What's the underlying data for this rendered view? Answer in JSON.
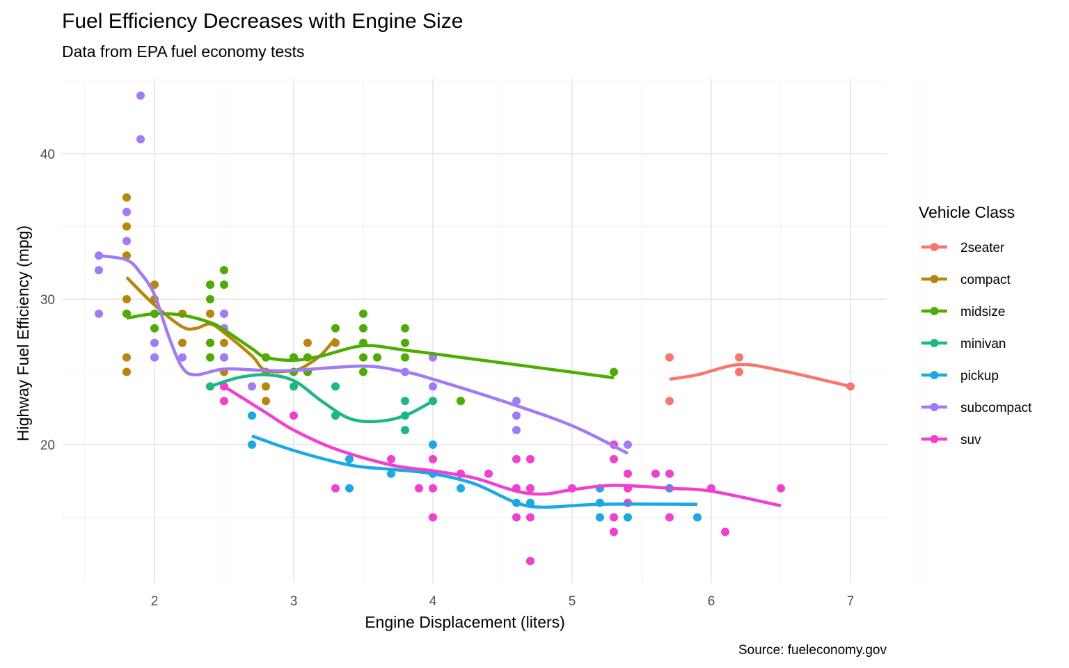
{
  "chart_data": {
    "type": "scatter",
    "title": "Fuel Efficiency Decreases with Engine Size",
    "subtitle": "Data from EPA fuel economy tests",
    "xlabel": "Engine Displacement (liters)",
    "ylabel": "Highway Fuel Efficiency (mpg)",
    "caption": "Source: fueleconomy.gov",
    "xlim": [
      1.6,
      7.0
    ],
    "ylim": [
      12,
      44
    ],
    "x_ticks": [
      2,
      3,
      4,
      5,
      6,
      7
    ],
    "y_ticks": [
      20,
      30,
      40
    ],
    "grid": true,
    "legend": {
      "title": "Vehicle Class",
      "position": "right"
    },
    "series": [
      {
        "name": "2seater",
        "color": "#F8766D",
        "points": [
          [
            5.7,
            26
          ],
          [
            5.7,
            23
          ],
          [
            6.2,
            26
          ],
          [
            6.2,
            25
          ],
          [
            7.0,
            24
          ]
        ],
        "smooth": [
          [
            5.7,
            24.5
          ],
          [
            5.9,
            24.8
          ],
          [
            6.2,
            25.5
          ],
          [
            6.5,
            25.1
          ],
          [
            7.0,
            24.0
          ]
        ]
      },
      {
        "name": "compact",
        "color": "#B8860B",
        "points": [
          [
            1.8,
            37
          ],
          [
            1.8,
            35
          ],
          [
            1.8,
            33
          ],
          [
            1.8,
            30
          ],
          [
            1.8,
            29
          ],
          [
            1.8,
            26
          ],
          [
            1.8,
            25
          ],
          [
            2.0,
            31
          ],
          [
            2.0,
            30
          ],
          [
            2.0,
            29
          ],
          [
            2.0,
            26
          ],
          [
            2.2,
            29
          ],
          [
            2.2,
            27
          ],
          [
            2.4,
            31
          ],
          [
            2.4,
            29
          ],
          [
            2.4,
            27
          ],
          [
            2.5,
            29
          ],
          [
            2.5,
            27
          ],
          [
            2.5,
            25
          ],
          [
            2.8,
            26
          ],
          [
            2.8,
            25
          ],
          [
            2.8,
            24
          ],
          [
            2.8,
            23
          ],
          [
            3.0,
            26
          ],
          [
            3.1,
            27
          ],
          [
            3.3,
            27
          ]
        ],
        "smooth": [
          [
            1.8,
            31.5
          ],
          [
            2.0,
            29.6
          ],
          [
            2.2,
            28.1
          ],
          [
            2.3,
            28.0
          ],
          [
            2.4,
            28.3
          ],
          [
            2.5,
            27.7
          ],
          [
            2.7,
            26.1
          ],
          [
            2.8,
            25.1
          ],
          [
            3.0,
            25.1
          ],
          [
            3.1,
            25.5
          ],
          [
            3.2,
            26.2
          ],
          [
            3.3,
            27.3
          ]
        ]
      },
      {
        "name": "midsize",
        "color": "#4DAC00",
        "points": [
          [
            1.8,
            29
          ],
          [
            2.0,
            29
          ],
          [
            2.0,
            28
          ],
          [
            2.4,
            31
          ],
          [
            2.4,
            30
          ],
          [
            2.4,
            27
          ],
          [
            2.4,
            26
          ],
          [
            2.5,
            32
          ],
          [
            2.5,
            31
          ],
          [
            2.5,
            26
          ],
          [
            2.8,
            26
          ],
          [
            3.0,
            26
          ],
          [
            3.0,
            25
          ],
          [
            3.1,
            26
          ],
          [
            3.1,
            25
          ],
          [
            3.3,
            28
          ],
          [
            3.5,
            29
          ],
          [
            3.5,
            28
          ],
          [
            3.5,
            27
          ],
          [
            3.5,
            26
          ],
          [
            3.5,
            25
          ],
          [
            3.6,
            26
          ],
          [
            3.8,
            28
          ],
          [
            3.8,
            27
          ],
          [
            3.8,
            26
          ],
          [
            4.2,
            23
          ],
          [
            5.3,
            25
          ]
        ],
        "smooth": [
          [
            1.8,
            28.7
          ],
          [
            2.0,
            29.0
          ],
          [
            2.2,
            28.9
          ],
          [
            2.4,
            28.4
          ],
          [
            2.5,
            27.9
          ],
          [
            2.7,
            26.6
          ],
          [
            2.8,
            26.0
          ],
          [
            3.0,
            25.8
          ],
          [
            3.2,
            26.1
          ],
          [
            3.5,
            26.8
          ],
          [
            3.8,
            26.5
          ],
          [
            4.2,
            26.0
          ],
          [
            5.3,
            24.6
          ]
        ]
      },
      {
        "name": "minivan",
        "color": "#1BB886",
        "points": [
          [
            2.4,
            24
          ],
          [
            3.0,
            24
          ],
          [
            3.3,
            24
          ],
          [
            3.3,
            22
          ],
          [
            3.8,
            23
          ],
          [
            3.8,
            22
          ],
          [
            3.8,
            21
          ],
          [
            4.0,
            23
          ]
        ],
        "smooth": [
          [
            2.4,
            24.0
          ],
          [
            2.6,
            24.6
          ],
          [
            2.8,
            24.8
          ],
          [
            3.0,
            24.4
          ],
          [
            3.2,
            23.0
          ],
          [
            3.4,
            21.8
          ],
          [
            3.6,
            21.6
          ],
          [
            3.8,
            22.0
          ],
          [
            4.0,
            23.0
          ]
        ]
      },
      {
        "name": "pickup",
        "color": "#19A9E5",
        "points": [
          [
            2.7,
            22
          ],
          [
            2.7,
            20
          ],
          [
            3.4,
            19
          ],
          [
            3.4,
            17
          ],
          [
            3.7,
            18
          ],
          [
            4.0,
            20
          ],
          [
            4.0,
            18
          ],
          [
            4.2,
            17
          ],
          [
            4.6,
            17
          ],
          [
            4.6,
            16
          ],
          [
            4.7,
            17
          ],
          [
            4.7,
            16
          ],
          [
            5.2,
            17
          ],
          [
            5.2,
            16
          ],
          [
            5.2,
            15
          ],
          [
            5.4,
            15
          ],
          [
            5.7,
            17
          ],
          [
            5.9,
            15
          ]
        ],
        "smooth": [
          [
            2.7,
            20.6
          ],
          [
            3.0,
            19.6
          ],
          [
            3.4,
            18.6
          ],
          [
            3.7,
            18.3
          ],
          [
            4.0,
            18.0
          ],
          [
            4.3,
            17.3
          ],
          [
            4.6,
            16.0
          ],
          [
            4.8,
            15.7
          ],
          [
            5.2,
            15.9
          ],
          [
            5.9,
            15.9
          ]
        ]
      },
      {
        "name": "subcompact",
        "color": "#9F7BFA",
        "points": [
          [
            1.6,
            33
          ],
          [
            1.6,
            32
          ],
          [
            1.6,
            29
          ],
          [
            1.8,
            36
          ],
          [
            1.8,
            34
          ],
          [
            1.9,
            44
          ],
          [
            1.9,
            41
          ],
          [
            2.0,
            27
          ],
          [
            2.0,
            26
          ],
          [
            2.2,
            26
          ],
          [
            2.5,
            29
          ],
          [
            2.5,
            28
          ],
          [
            2.5,
            26
          ],
          [
            2.7,
            24
          ],
          [
            3.8,
            25
          ],
          [
            4.0,
            26
          ],
          [
            4.0,
            24
          ],
          [
            4.6,
            23
          ],
          [
            4.6,
            22
          ],
          [
            4.6,
            21
          ],
          [
            5.4,
            20
          ]
        ],
        "smooth": [
          [
            1.6,
            33.0
          ],
          [
            1.8,
            32.7
          ],
          [
            1.9,
            31.8
          ],
          [
            2.0,
            30.3
          ],
          [
            2.1,
            27.5
          ],
          [
            2.2,
            25.3
          ],
          [
            2.3,
            24.8
          ],
          [
            2.5,
            25.2
          ],
          [
            2.8,
            25.1
          ],
          [
            3.0,
            25.1
          ],
          [
            3.5,
            25.4
          ],
          [
            3.8,
            25.0
          ],
          [
            4.0,
            24.5
          ],
          [
            4.5,
            23.0
          ],
          [
            5.0,
            21.3
          ],
          [
            5.4,
            19.4
          ]
        ]
      },
      {
        "name": "suv",
        "color": "#F23FCF",
        "points": [
          [
            2.5,
            24
          ],
          [
            2.5,
            23
          ],
          [
            3.0,
            22
          ],
          [
            3.3,
            17
          ],
          [
            3.7,
            19
          ],
          [
            3.9,
            17
          ],
          [
            4.0,
            19
          ],
          [
            4.0,
            17
          ],
          [
            4.0,
            15
          ],
          [
            4.2,
            18
          ],
          [
            4.4,
            18
          ],
          [
            4.6,
            19
          ],
          [
            4.6,
            17
          ],
          [
            4.6,
            15
          ],
          [
            4.7,
            19
          ],
          [
            4.7,
            17
          ],
          [
            4.7,
            15
          ],
          [
            4.7,
            12
          ],
          [
            5.0,
            17
          ],
          [
            5.3,
            20
          ],
          [
            5.3,
            19
          ],
          [
            5.3,
            15
          ],
          [
            5.3,
            14
          ],
          [
            5.4,
            18
          ],
          [
            5.4,
            17
          ],
          [
            5.4,
            16
          ],
          [
            5.6,
            18
          ],
          [
            5.7,
            18
          ],
          [
            5.7,
            15
          ],
          [
            6.0,
            17
          ],
          [
            6.1,
            14
          ],
          [
            6.5,
            17
          ]
        ],
        "smooth": [
          [
            2.5,
            24.0
          ],
          [
            2.8,
            22.2
          ],
          [
            3.0,
            21.0
          ],
          [
            3.3,
            19.7
          ],
          [
            3.7,
            18.6
          ],
          [
            4.0,
            18.2
          ],
          [
            4.3,
            17.7
          ],
          [
            4.6,
            16.8
          ],
          [
            4.8,
            16.6
          ],
          [
            5.0,
            16.9
          ],
          [
            5.3,
            17.2
          ],
          [
            5.7,
            17.0
          ],
          [
            6.0,
            16.8
          ],
          [
            6.5,
            15.8
          ]
        ]
      }
    ]
  }
}
